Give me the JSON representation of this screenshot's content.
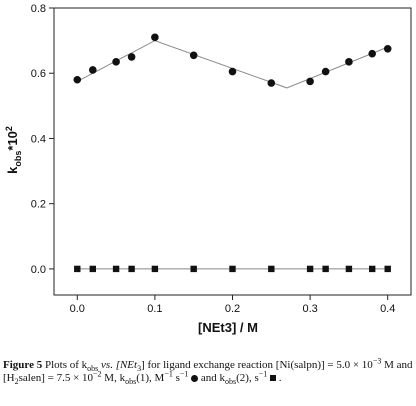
{
  "chart_data": {
    "type": "scatter",
    "xlabel": "[NEt3] / M",
    "ylabel": "kobs*10^2",
    "xlim": [
      -0.03,
      0.43
    ],
    "ylim": [
      -0.08,
      0.8
    ],
    "xticks": [
      0.0,
      0.1,
      0.2,
      0.3,
      0.4
    ],
    "yticks": [
      0.0,
      0.2,
      0.4,
      0.6,
      0.8
    ],
    "xtick_labels": [
      "0.0",
      "0.1",
      "0.2",
      "0.3",
      "0.4"
    ],
    "ytick_labels": [
      "0.0",
      "0.2",
      "0.4",
      "0.6",
      "0.8"
    ],
    "grid": false,
    "series": [
      {
        "marker": "circle",
        "x": [
          0.0,
          0.02,
          0.05,
          0.07,
          0.1,
          0.15,
          0.2,
          0.25,
          0.3,
          0.32,
          0.35,
          0.38,
          0.4
        ],
        "values": [
          0.58,
          0.61,
          0.635,
          0.65,
          0.71,
          0.655,
          0.605,
          0.57,
          0.575,
          0.605,
          0.635,
          0.66,
          0.675
        ],
        "fit_x": [
          0.0,
          0.1,
          0.27,
          0.4
        ],
        "fit_y": [
          0.575,
          0.7,
          0.555,
          0.68
        ]
      },
      {
        "marker": "square",
        "x": [
          0.0,
          0.02,
          0.05,
          0.07,
          0.1,
          0.15,
          0.2,
          0.25,
          0.3,
          0.32,
          0.35,
          0.38,
          0.4
        ],
        "values": [
          0.0,
          0.0,
          0.0,
          0.0,
          0.0,
          0.0,
          0.0,
          0.0,
          0.0,
          0.0,
          0.0,
          0.0,
          0.0
        ],
        "fit_x": [
          0.0,
          0.4
        ],
        "fit_y": [
          0.0,
          0.0
        ]
      }
    ],
    "colors": {
      "marker": "#111111",
      "line": "#888888",
      "axis": "#222222"
    }
  },
  "caption": {
    "label": "Figure 5",
    "p1": " Plots of k",
    "p1_sub": "obs",
    "p2": " vs. [NEt",
    "p2_sub": "3",
    "p3": "] for ligand exchange reaction [Ni(salpn)] = 5.0 × 10",
    "p3_sup": "−3",
    "p4": " M and [H",
    "p4_sub": "2",
    "p5": "salen] = 7.5 × 10",
    "p5_sup": "−2",
    "p6": " M, k",
    "p6_sub": "obs",
    "p7": "(1), M",
    "p7_sup": "−1",
    "p8": " s",
    "p8_sup": "−1",
    "p9": " and k",
    "p9_sub": "obs",
    "p10": "(2), s",
    "p10_sup": "−1",
    "p11": " ."
  }
}
